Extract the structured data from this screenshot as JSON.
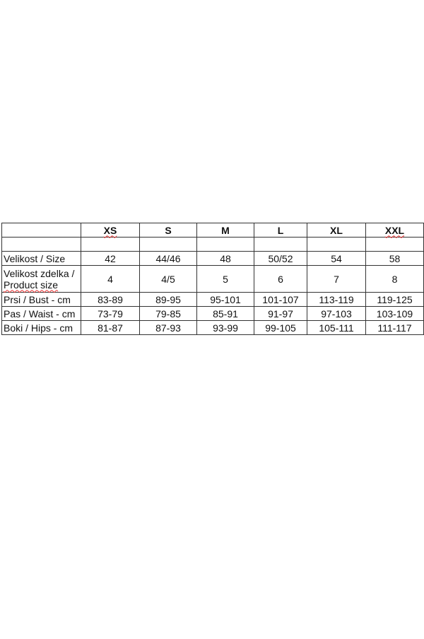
{
  "table": {
    "headers": [
      "",
      "XS",
      "S",
      "M",
      "L",
      "XL",
      "XXL"
    ],
    "rows": [
      {
        "label": "Velikost  / Size",
        "values": [
          "42",
          "44/46",
          "48",
          "50/52",
          "54",
          "58"
        ]
      },
      {
        "label_line1": "Velikost zdelka /",
        "label_line2": "Product size",
        "values": [
          "4",
          "4/5",
          "5",
          "6",
          "7",
          "8"
        ]
      },
      {
        "label": "Prsi / Bust - cm",
        "values": [
          "83-89",
          "89-95",
          "95-101",
          "101-107",
          "113-119",
          "119-125"
        ]
      },
      {
        "label": "Pas / Waist - cm",
        "values": [
          "73-79",
          "79-85",
          "85-91",
          "91-97",
          "97-103",
          "103-109"
        ]
      },
      {
        "label": "Boki / Hips - cm",
        "values": [
          "81-87",
          "87-93",
          "93-99",
          "99-105",
          "105-111",
          "111-117"
        ]
      }
    ]
  }
}
